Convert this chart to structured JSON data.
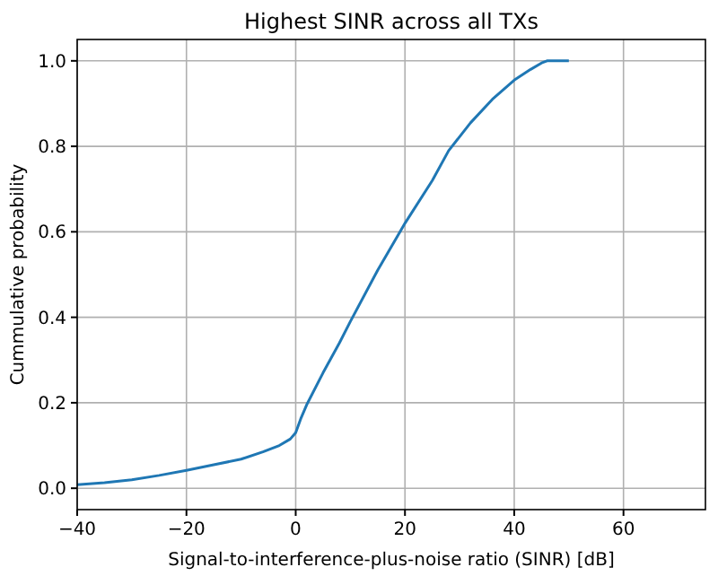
{
  "chart_data": {
    "type": "line",
    "title": "Highest SINR across all TXs",
    "xlabel": "Signal-to-interference-plus-noise ratio (SINR) [dB]",
    "ylabel": "Cummulative probability",
    "x": [
      -40,
      -35,
      -30,
      -25,
      -20,
      -15,
      -10,
      -6,
      -3,
      -1,
      0,
      1,
      2,
      5,
      8,
      10,
      15,
      20,
      25,
      28,
      32,
      36,
      40,
      43,
      45,
      46,
      50
    ],
    "series": [
      {
        "color": "#1f77b4",
        "values": [
          0.008,
          0.013,
          0.02,
          0.03,
          0.042,
          0.055,
          0.068,
          0.085,
          0.1,
          0.115,
          0.13,
          0.165,
          0.195,
          0.27,
          0.34,
          0.39,
          0.51,
          0.62,
          0.72,
          0.79,
          0.855,
          0.91,
          0.955,
          0.98,
          0.995,
          1.0,
          1.0
        ]
      }
    ],
    "xlim": [
      -40,
      75
    ],
    "xticks": [
      -40,
      -20,
      0,
      20,
      40,
      60
    ],
    "ylim": [
      -0.05,
      1.05
    ],
    "yticks": [
      {
        "value": 0,
        "label": "0.0"
      },
      {
        "value": 0.2,
        "label": "0.2"
      },
      {
        "value": 0.4,
        "label": "0.4"
      },
      {
        "value": 0.6,
        "label": "0.6"
      },
      {
        "value": 0.8,
        "label": "0.8"
      },
      {
        "value": 1,
        "label": "1.0"
      }
    ],
    "grid": true
  }
}
